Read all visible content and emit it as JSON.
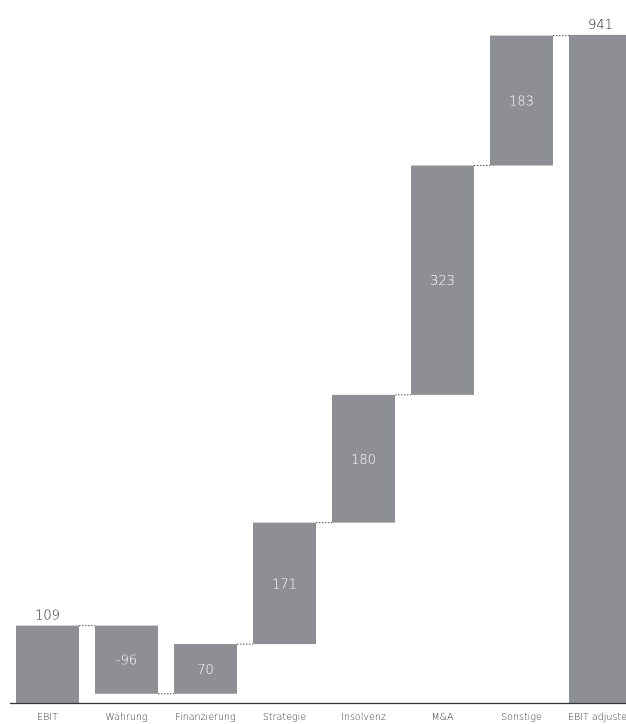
{
  "chart_data": {
    "type": "waterfall",
    "categories": [
      "EBIT",
      "Währung",
      "Finanzierung",
      "Strategie",
      "Insolvenz",
      "M&A",
      "Sonstige",
      "EBIT adjusted"
    ],
    "values": [
      109,
      -96,
      70,
      171,
      180,
      323,
      183,
      941
    ],
    "labels": [
      "109",
      "-96",
      "70",
      "171",
      "180",
      "323",
      "183",
      "941"
    ],
    "kinds": [
      "total",
      "delta",
      "delta",
      "delta",
      "delta",
      "delta",
      "delta",
      "total"
    ],
    "bar_color": "#8e8f94",
    "inside_label_color": "#ffffff",
    "outside_label_color": "#1a1a1a",
    "connector_color": "#555555",
    "axis_color": "#333333",
    "grid": false,
    "legend": "none"
  }
}
